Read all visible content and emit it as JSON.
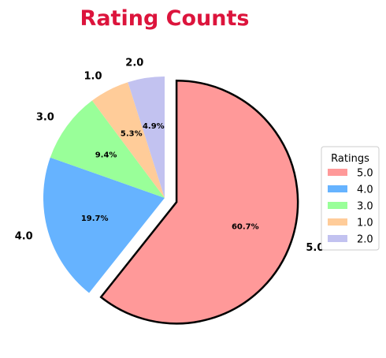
{
  "chart_data": {
    "type": "pie",
    "title": "Rating Counts",
    "title_color": "#dc143c",
    "categories": [
      "5.0",
      "4.0",
      "3.0",
      "1.0",
      "2.0"
    ],
    "values": [
      60.7,
      19.7,
      9.4,
      5.3,
      4.9
    ],
    "value_labels": [
      "60.7%",
      "19.7%",
      "9.4%",
      "5.3%",
      "4.9%"
    ],
    "colors": [
      "#ff9999",
      "#66b3ff",
      "#99ff99",
      "#ffcc99",
      "#c2c2f0"
    ],
    "exploded": "5.0",
    "start_angle_deg": 90,
    "direction": "clockwise",
    "legend": {
      "title": "Ratings",
      "position": "right"
    }
  }
}
